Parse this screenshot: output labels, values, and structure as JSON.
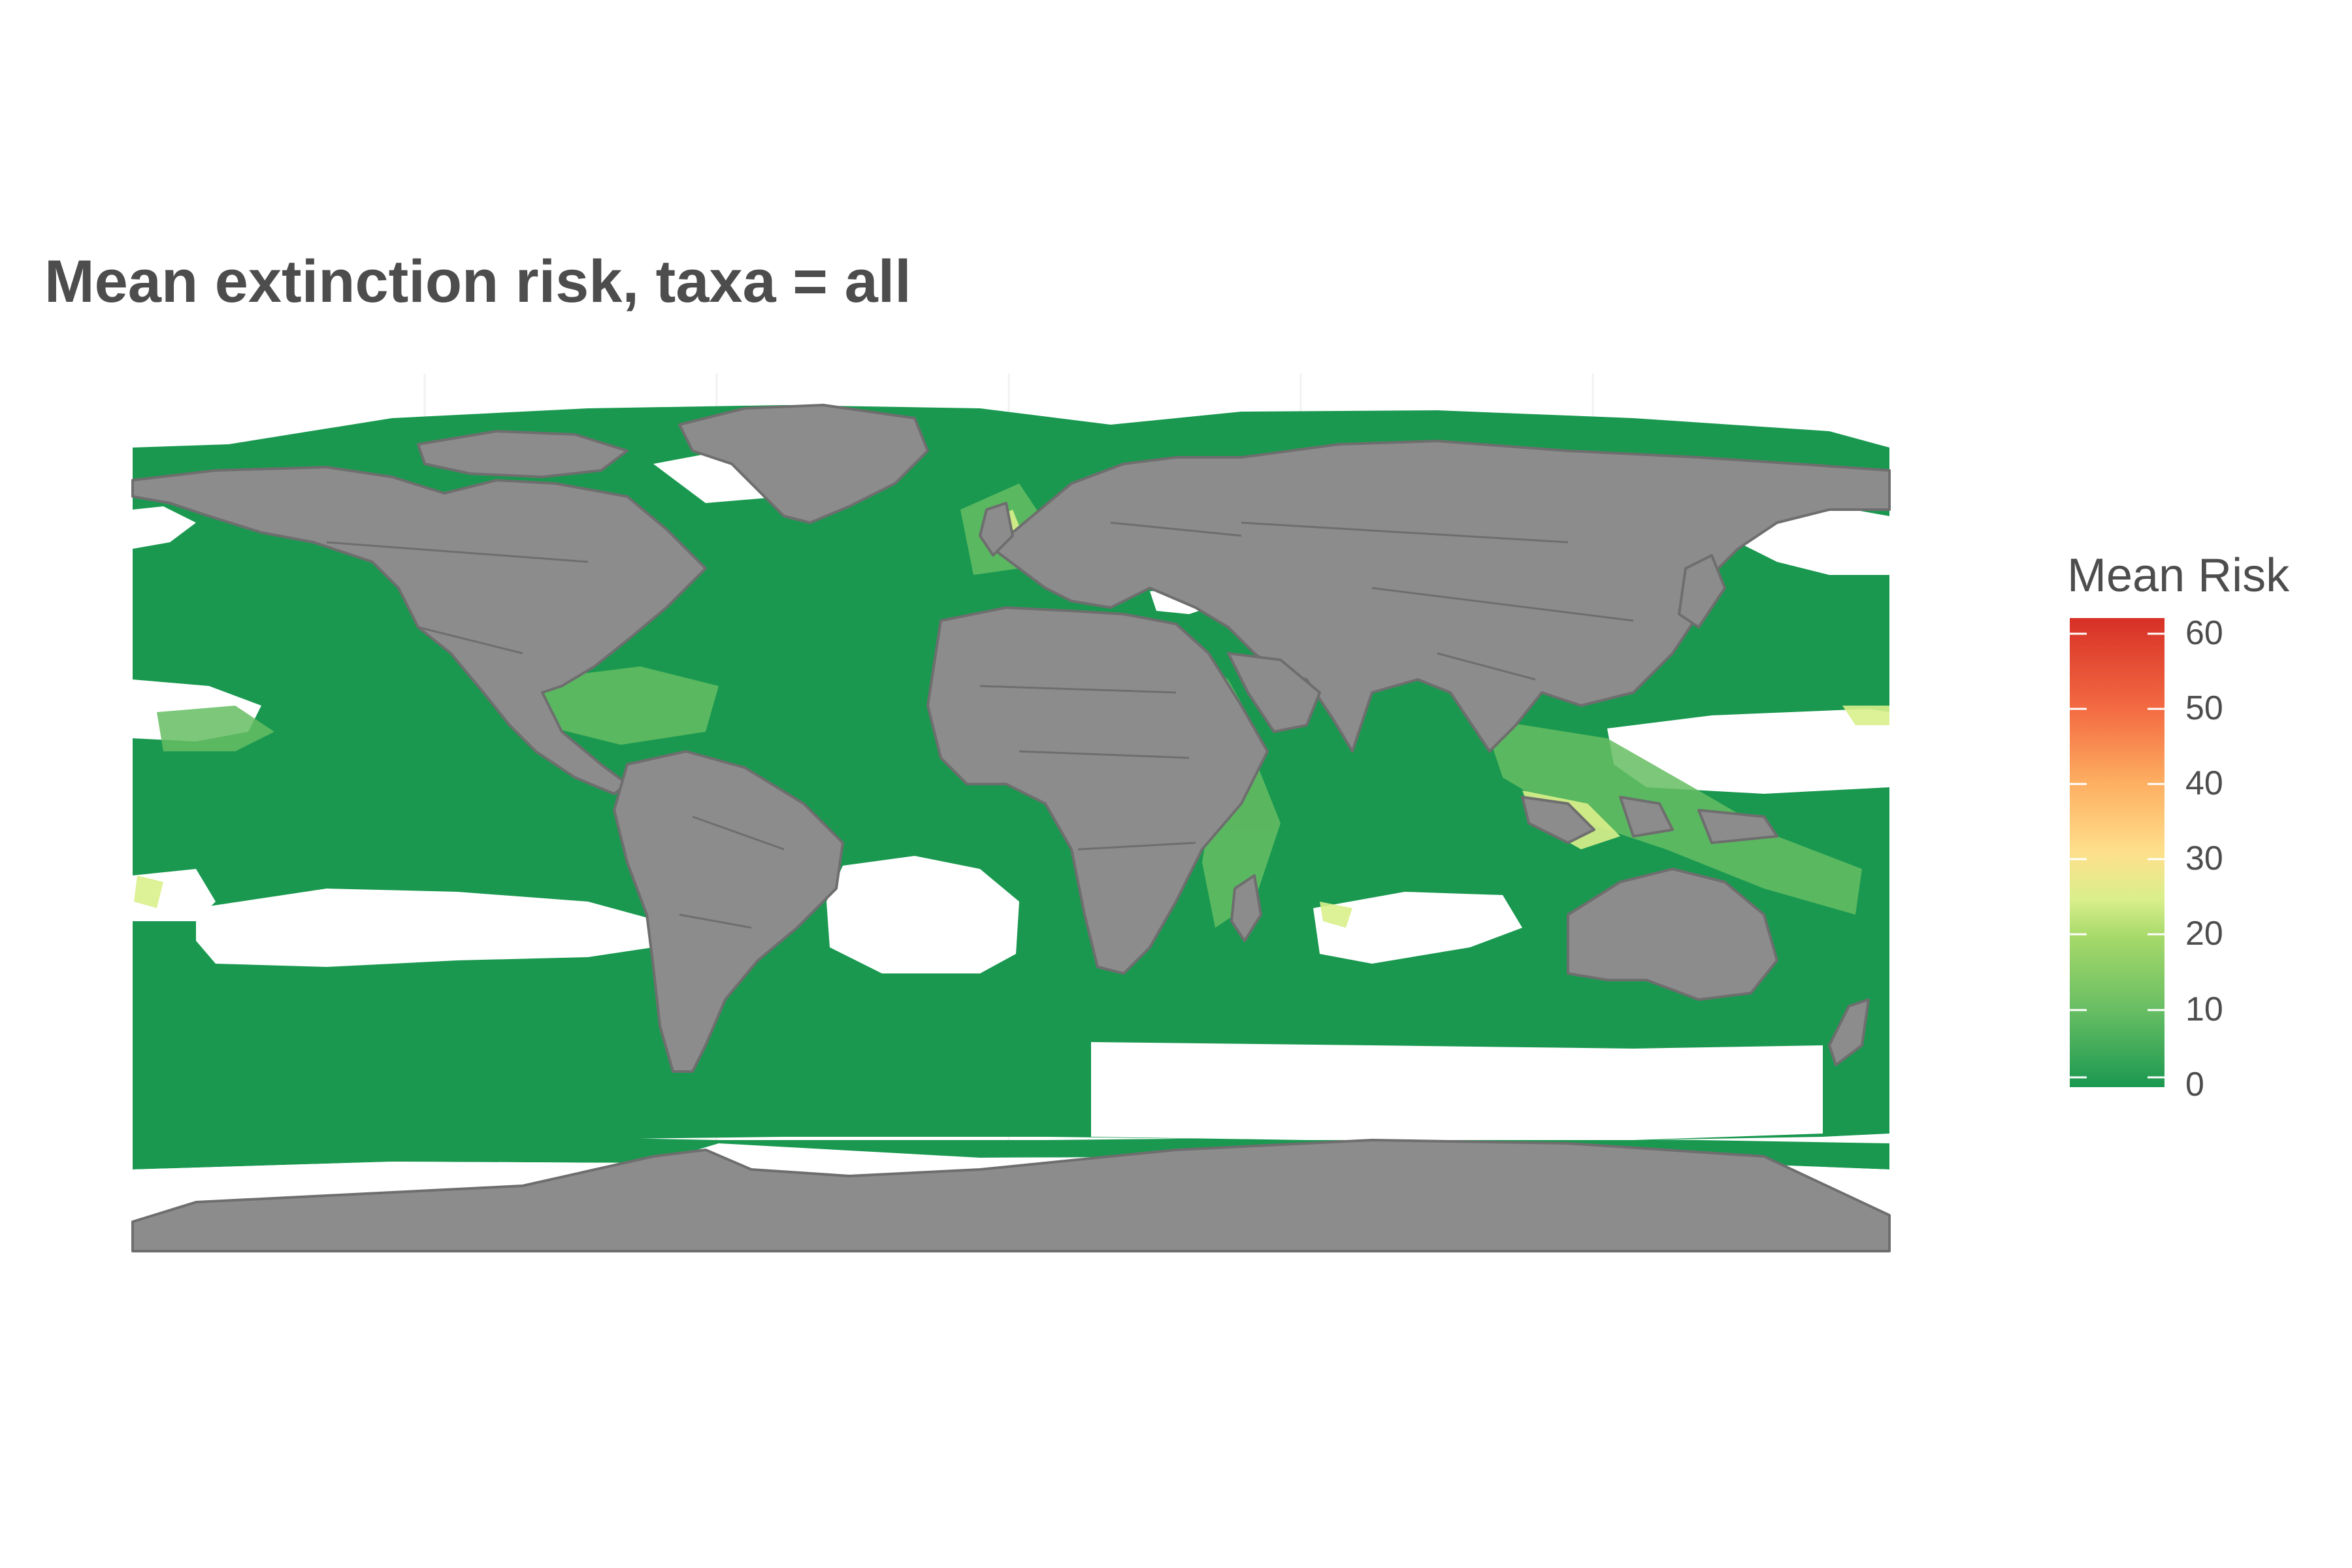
{
  "title": "Mean extinction risk, taxa = all",
  "legend": {
    "title": "Mean Risk",
    "ticks": [
      "60",
      "50",
      "40",
      "30",
      "20",
      "10",
      "0"
    ],
    "tick_values": [
      60,
      50,
      40,
      30,
      20,
      10,
      0
    ],
    "range": [
      0,
      62
    ],
    "colors": [
      "#1a9850",
      "#66bd63",
      "#a6d96a",
      "#d9ef8b",
      "#fee08b",
      "#fdae61",
      "#f46d43",
      "#d73027"
    ]
  },
  "map": {
    "projection": "equirectangular",
    "ocean_color": "#1a9850",
    "land_color": "#8c8c8c",
    "border_color": "#6e6e6e",
    "no_data_color": "#ffffff"
  }
}
